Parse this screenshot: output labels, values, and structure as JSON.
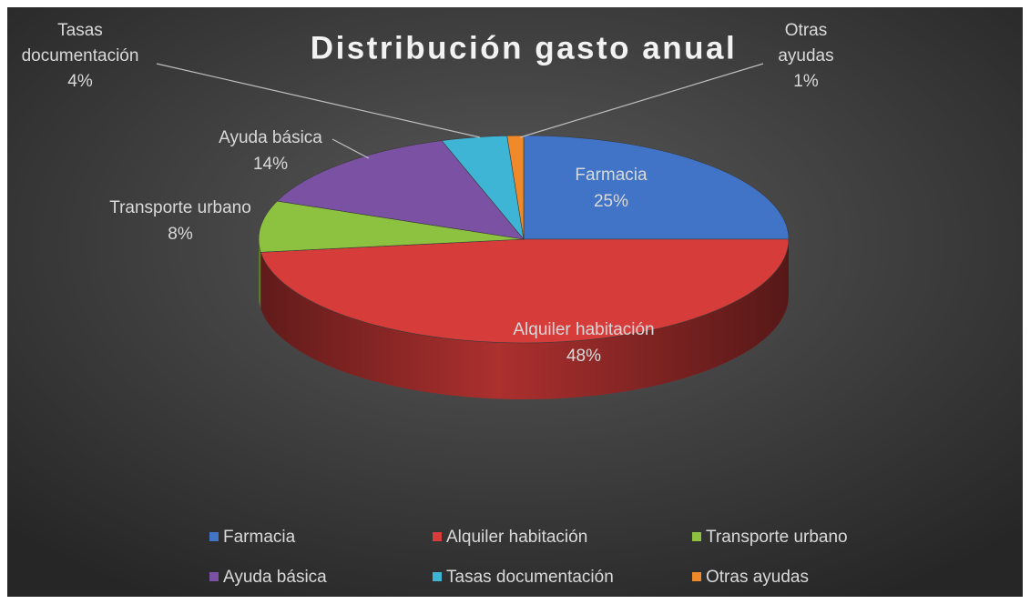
{
  "chart_data": {
    "type": "pie3d",
    "title": "Distribución gasto anual",
    "categories": [
      "Farmacia",
      "Alquiler habitación",
      "Transporte urbano",
      "Ayuda básica",
      "Tasas documentación",
      "Otras ayudas"
    ],
    "values": [
      25,
      48,
      8,
      14,
      4,
      1
    ],
    "value_labels": [
      "25%",
      "48%",
      "8%",
      "14%",
      "4%",
      "1%"
    ],
    "colors": [
      "#4174c6",
      "#d63c3a",
      "#8dc241",
      "#7b51a3",
      "#3fb5d6",
      "#f0892a"
    ],
    "legend": "bottom"
  }
}
